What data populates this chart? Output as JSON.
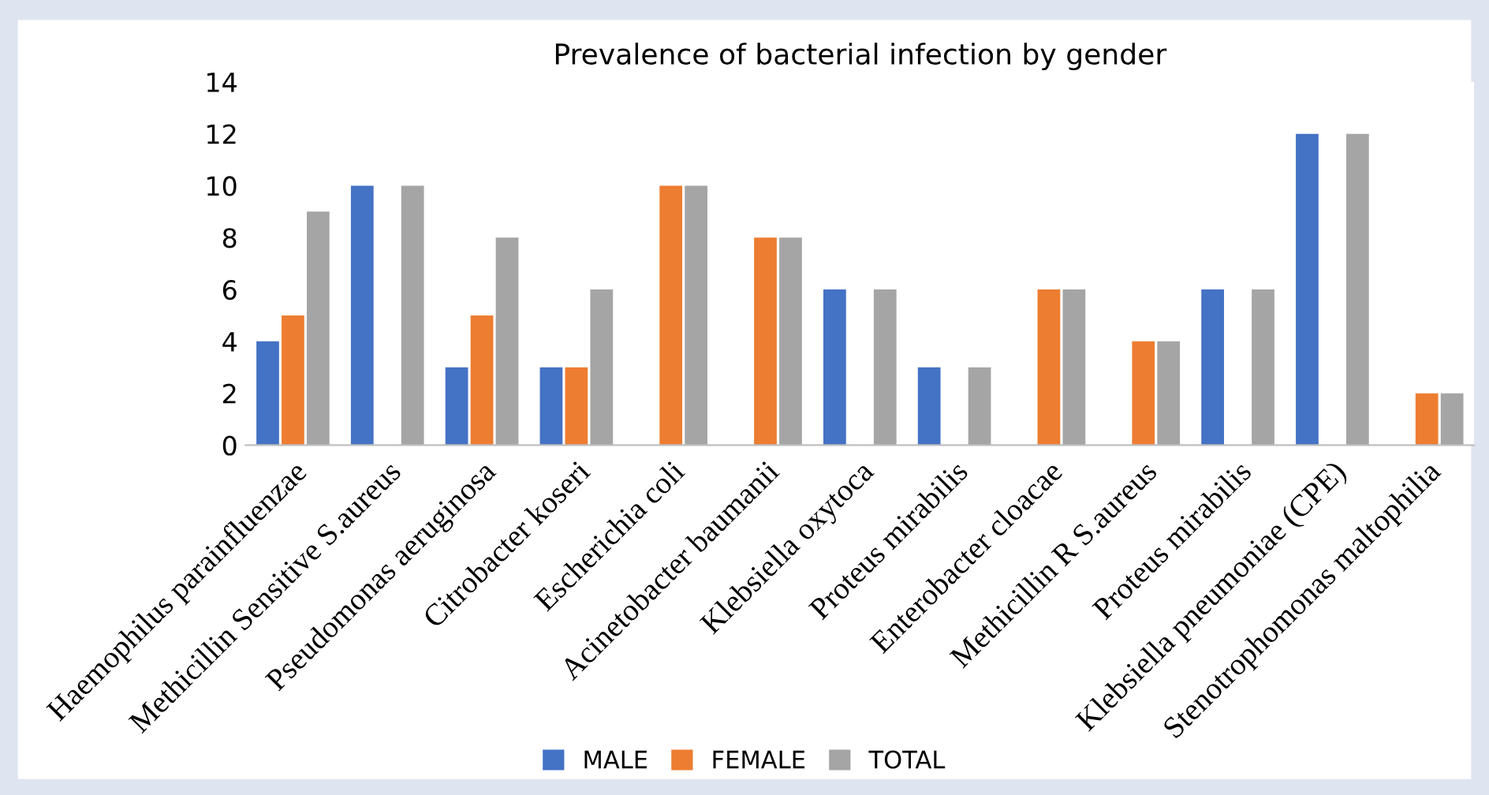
{
  "chart_data": {
    "type": "bar",
    "title": "Prevalence of bacterial infection by gender",
    "categories": [
      "Haemophilus parainfluenzae",
      "Methicillin Sensitive S.aureus",
      "Pseudomonas aeruginosa",
      "Citrobacter koseri",
      "Escherichia coli",
      "Acinetobacter baumanii",
      "Klebsiella oxytoca",
      "Proteus mirabilis",
      "Enterobacter cloacae",
      "Methicillin R S.aureus",
      "Proteus mirabilis",
      "Klebsiella pneumoniae (CPE)",
      "Stenotrophomonas maltophilia"
    ],
    "series": [
      {
        "name": "MALE",
        "color": "#4472c4",
        "values": [
          4,
          10,
          3,
          3,
          null,
          null,
          6,
          3,
          null,
          null,
          6,
          12,
          null
        ]
      },
      {
        "name": "FEMALE",
        "color": "#ed7d31",
        "values": [
          5,
          null,
          5,
          3,
          10,
          8,
          null,
          null,
          6,
          4,
          null,
          null,
          2
        ]
      },
      {
        "name": "TOTAL",
        "color": "#a5a5a5",
        "values": [
          9,
          10,
          8,
          6,
          10,
          8,
          6,
          3,
          6,
          4,
          6,
          12,
          2
        ]
      }
    ],
    "ylim": [
      0,
      14
    ],
    "yticks": [
      0,
      2,
      4,
      6,
      8,
      10,
      12,
      14
    ],
    "grid": false,
    "legend": "bottom"
  }
}
